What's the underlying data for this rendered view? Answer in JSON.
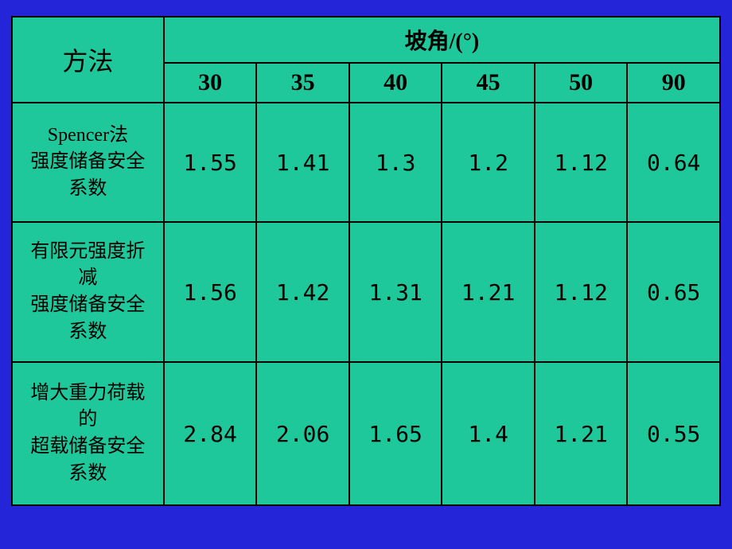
{
  "headers": {
    "method": "方法",
    "angle": "坡角/(°)"
  },
  "angle_columns": [
    "30",
    "35",
    "40",
    "45",
    "50",
    "90"
  ],
  "rows": [
    {
      "label_lines": [
        "Spencer法",
        "强度储备安全",
        "系数"
      ],
      "values": [
        "1.55",
        "1.41",
        "1.3",
        "1.2",
        "1.12",
        "0.64"
      ]
    },
    {
      "label_lines": [
        "有限元强度折",
        "减",
        "强度储备安全",
        "系数"
      ],
      "values": [
        "1.56",
        "1.42",
        "1.31",
        "1.21",
        "1.12",
        "0.65"
      ]
    },
    {
      "label_lines": [
        "增大重力荷载",
        "的",
        "超载储备安全",
        "系数"
      ],
      "values": [
        "2.84",
        "2.06",
        "1.65",
        "1.4",
        "1.21",
        "0.55"
      ]
    }
  ],
  "styling": {
    "page_background": "#2424d8",
    "cell_background": "#1ec89a",
    "border_color": "#000000",
    "text_color": "#000000",
    "method_header_fontsize": 32,
    "angle_header_fontsize": 28,
    "angle_col_fontsize": 30,
    "method_cell_fontsize": 24,
    "data_cell_fontsize": 28,
    "font_family": "SimSun",
    "border_width": 2
  }
}
